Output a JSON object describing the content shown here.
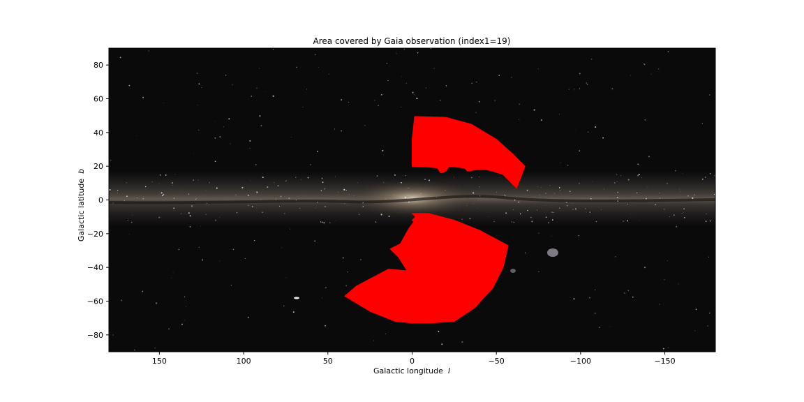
{
  "chart_data": {
    "type": "scatter",
    "title": "Area covered by Gaia observation (index1=19)",
    "xlabel": "Galactic longitude",
    "xlabel_symbol": "l",
    "ylabel": "Galactic latitude",
    "ylabel_symbol": "b",
    "xlim": [
      180,
      -180
    ],
    "ylim": [
      -90,
      90
    ],
    "xticks": [
      150,
      100,
      50,
      0,
      -50,
      -100,
      -150
    ],
    "xtick_labels": [
      "150",
      "100",
      "50",
      "0",
      "−50",
      "−100",
      "−150"
    ],
    "yticks": [
      80,
      60,
      40,
      20,
      0,
      -20,
      -40,
      -60,
      -80
    ],
    "ytick_labels": [
      "80",
      "60",
      "40",
      "20",
      "0",
      "−20",
      "−40",
      "−60",
      "−80"
    ],
    "grid": false,
    "background": "Milky Way all-sky image",
    "series": [
      {
        "color": "#ff0000",
        "regions": [
          {
            "label": "northern-region",
            "outline": [
              [
                -1.5,
                49.5
              ],
              [
                -20,
                49
              ],
              [
                -35,
                45
              ],
              [
                -50,
                36
              ],
              [
                -60,
                27
              ],
              [
                -67,
                20
              ],
              [
                -64,
                12
              ],
              [
                -62,
                7
              ],
              [
                -54,
                15
              ],
              [
                -48,
                17
              ],
              [
                -44,
                18
              ],
              [
                -38,
                18
              ],
              [
                -33,
                17
              ],
              [
                -31,
                19
              ],
              [
                -22,
                20
              ],
              [
                -20,
                17
              ],
              [
                -17,
                16
              ],
              [
                -15,
                19
              ],
              [
                -10,
                19.5
              ],
              [
                0,
                20
              ],
              [
                0,
                36
              ],
              [
                -1.5,
                49.5
              ]
            ]
          },
          {
            "label": "southern-region",
            "outline": [
              [
                -2,
                -10
              ],
              [
                0,
                -8
              ],
              [
                -10,
                -8
              ],
              [
                -25,
                -12
              ],
              [
                -40,
                -18
              ],
              [
                -57,
                -27
              ],
              [
                -54,
                -40
              ],
              [
                -48,
                -52
              ],
              [
                -37,
                -64
              ],
              [
                -25,
                -72
              ],
              [
                -10,
                -73
              ],
              [
                0,
                -73
              ],
              [
                10,
                -72
              ],
              [
                25,
                -66
              ],
              [
                40,
                -57
              ],
              [
                33,
                -51
              ],
              [
                14,
                -41
              ],
              [
                3,
                -42
              ],
              [
                8,
                -34
              ],
              [
                13,
                -29
              ],
              [
                7,
                -26
              ],
              [
                2,
                -17
              ],
              [
                -1,
                -13
              ],
              [
                0,
                -12
              ]
            ]
          }
        ]
      }
    ]
  }
}
